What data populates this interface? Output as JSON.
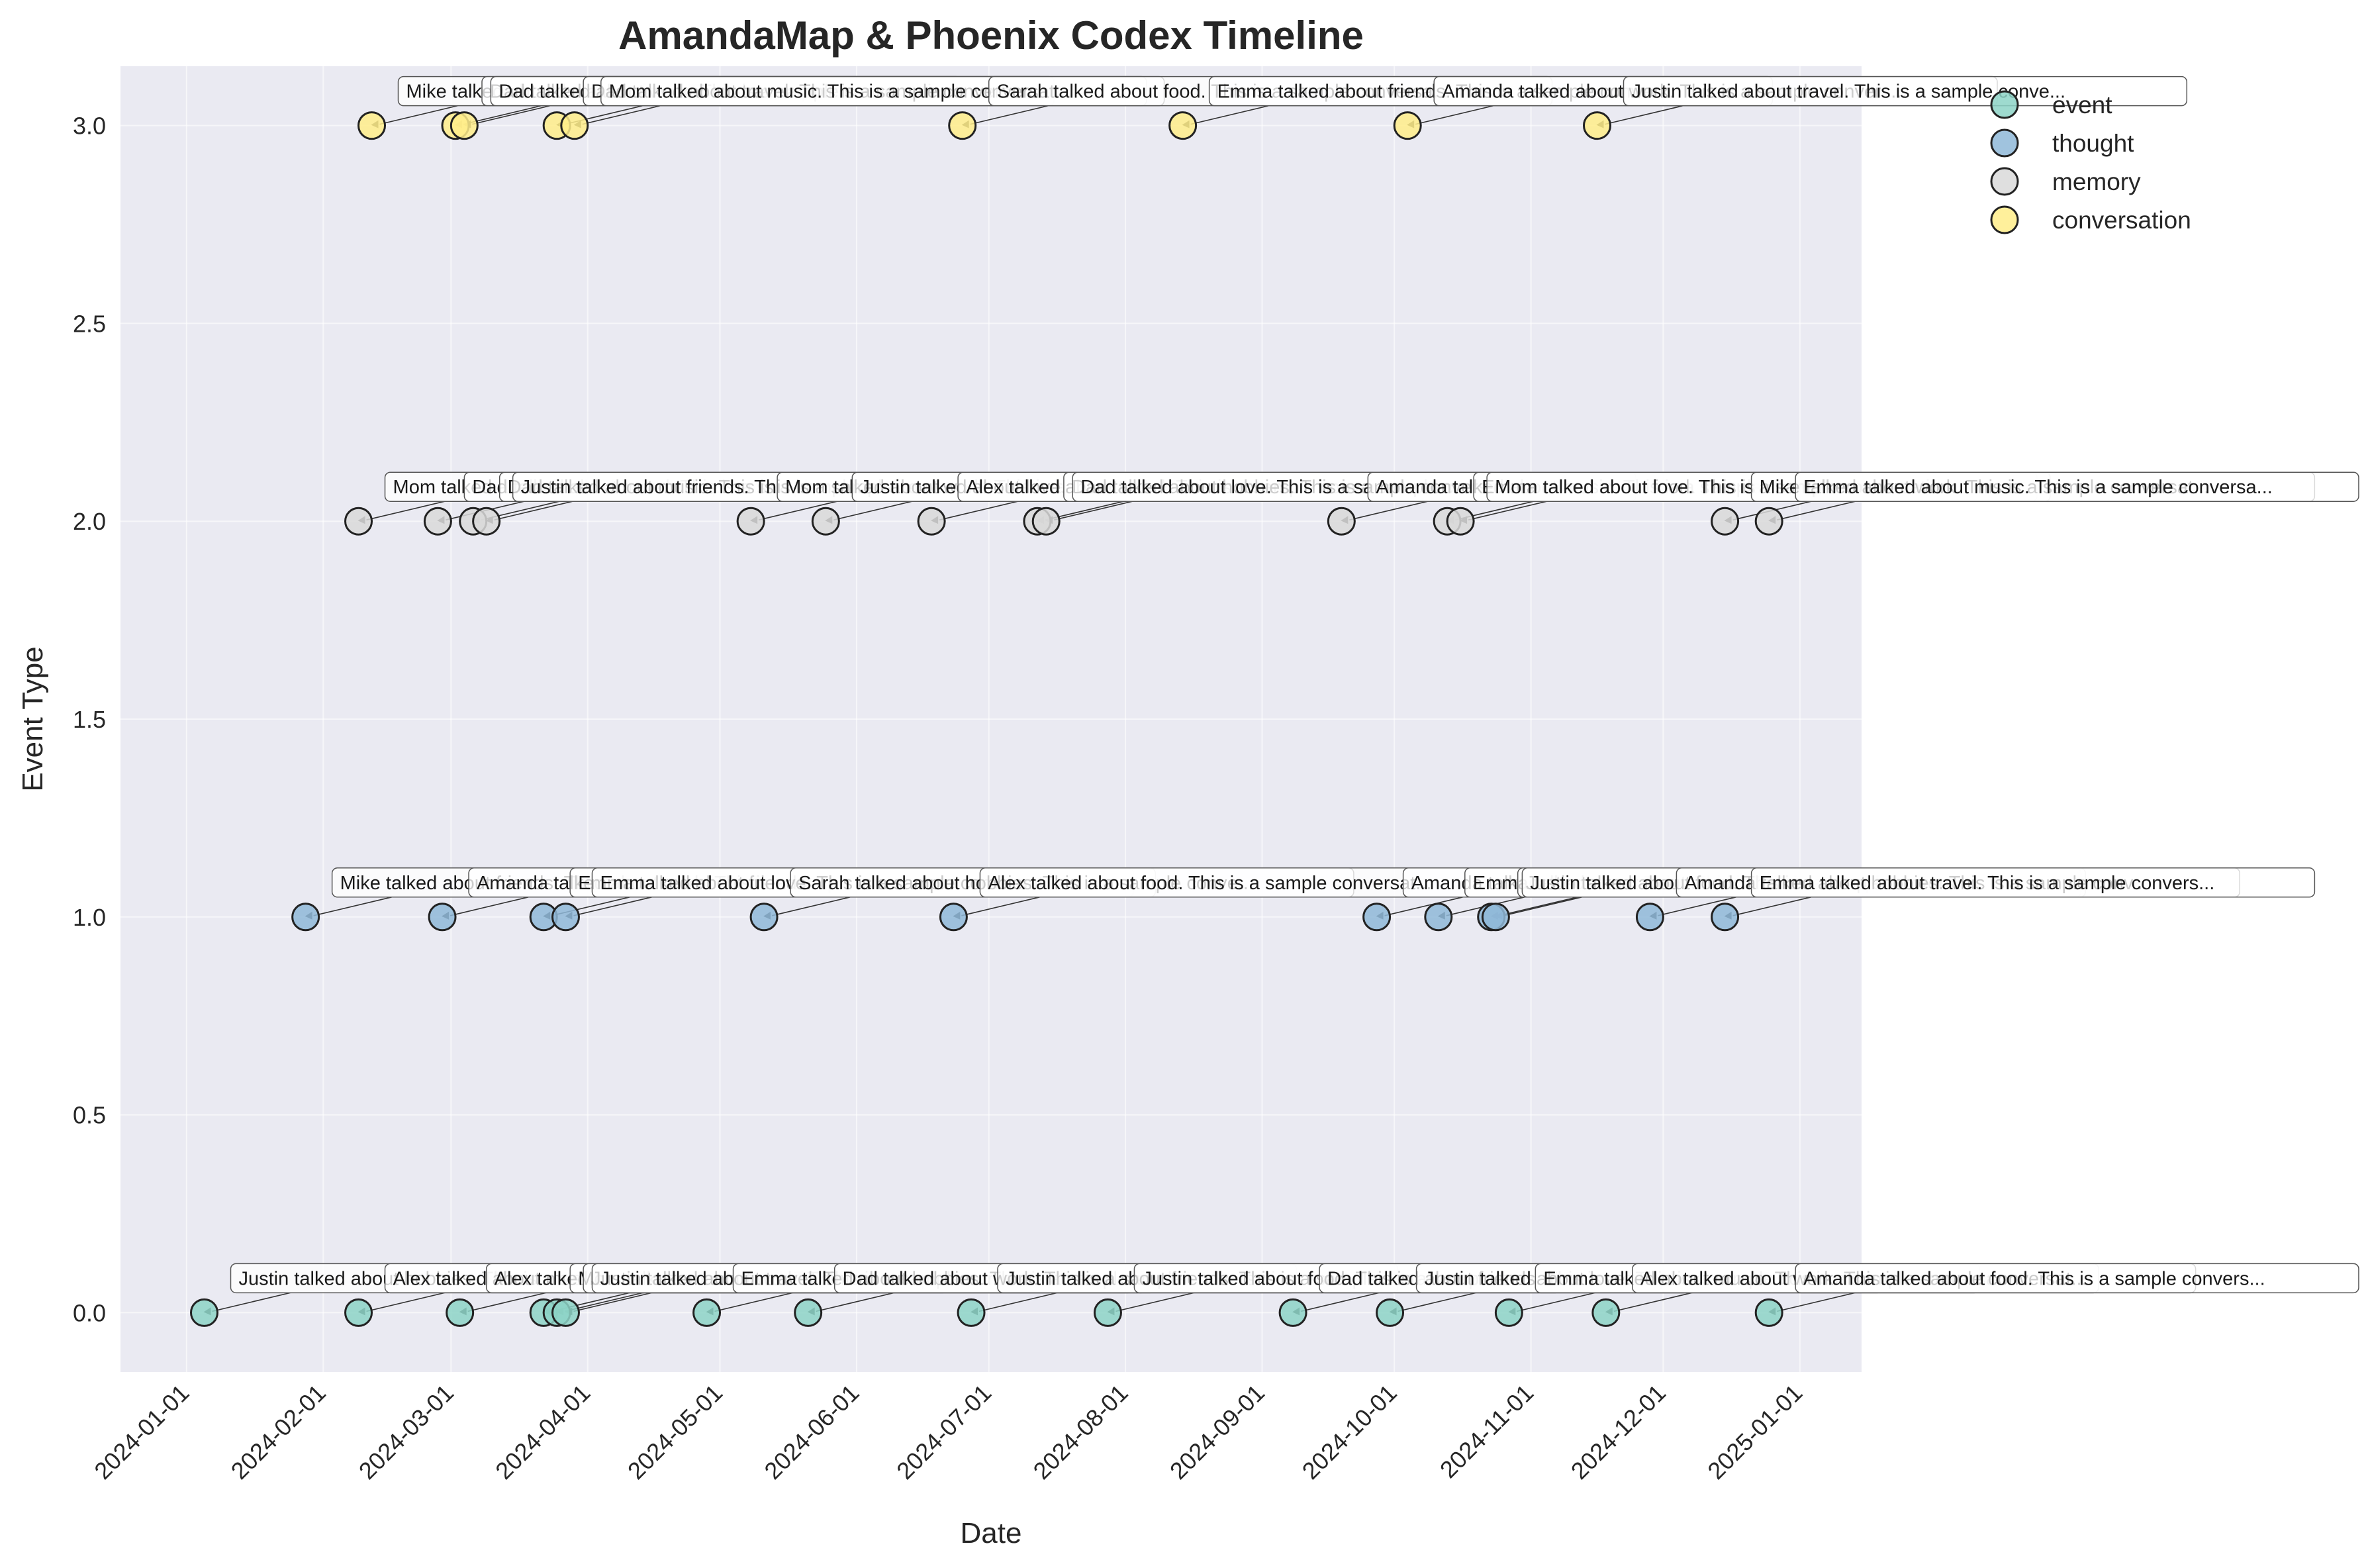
{
  "chart_data": {
    "type": "scatter",
    "title": "AmandaMap & Phoenix Codex Timeline",
    "xlabel": "Date",
    "ylabel": "Event Type",
    "xlim": [
      "2023-12-17",
      "2025-01-15"
    ],
    "ylim": [
      -0.15,
      3.15
    ],
    "x_ticks": [
      "2024-01-01",
      "2024-02-01",
      "2024-03-01",
      "2024-04-01",
      "2024-05-01",
      "2024-06-01",
      "2024-07-01",
      "2024-08-01",
      "2024-09-01",
      "2024-10-01",
      "2024-11-01",
      "2024-12-01",
      "2025-01-01"
    ],
    "y_ticks": [
      "0.0",
      "0.5",
      "1.0",
      "1.5",
      "2.0",
      "2.5",
      "3.0"
    ],
    "y_tick_values": [
      0,
      0.5,
      1,
      1.5,
      2,
      2.5,
      3
    ],
    "grid": true,
    "legend_position": "top-right",
    "series": [
      {
        "name": "event",
        "color": "#8dd3c7",
        "points": [
          {
            "x": "2024-01-05",
            "y": 0,
            "label": "Justin talked about hobbies. This is a sample conv..."
          },
          {
            "x": "2024-02-09",
            "y": 0,
            "label": "Alex talked about music. This is a sample conversa..."
          },
          {
            "x": "2024-03-03",
            "y": 0,
            "label": "Alex talked about love. This is a sample conversat..."
          },
          {
            "x": "2024-03-22",
            "y": 0,
            "label": "Mom talked about travel. This is a sample conversa..."
          },
          {
            "x": "2024-03-25",
            "y": 0,
            "label": "Justin talked about work. This is a sample convers..."
          },
          {
            "x": "2024-03-27",
            "y": 0,
            "label": "Justin talked about travel. This is a sample conve..."
          },
          {
            "x": "2024-04-28",
            "y": 0,
            "label": "Emma talked about hobbies. This is a sample conver..."
          },
          {
            "x": "2024-05-21",
            "y": 0,
            "label": "Dad talked about work. This is a sample conversati..."
          },
          {
            "x": "2024-06-27",
            "y": 0,
            "label": "Justin talked about friends. This is a sample conv..."
          },
          {
            "x": "2024-07-28",
            "y": 0,
            "label": "Justin talked about food. This is a sample convers..."
          },
          {
            "x": "2024-09-08",
            "y": 0,
            "label": "Dad talked about friends. This is a sample convers..."
          },
          {
            "x": "2024-09-30",
            "y": 0,
            "label": "Justin talked about love. This is a sample convers..."
          },
          {
            "x": "2024-10-27",
            "y": 0,
            "label": "Emma talked about music. This is a sample conversa..."
          },
          {
            "x": "2024-11-18",
            "y": 0,
            "label": "Alex talked about work. This is a sample conversat..."
          },
          {
            "x": "2024-12-25",
            "y": 0,
            "label": "Amanda talked about food. This is a sample convers..."
          }
        ]
      },
      {
        "name": "thought",
        "color": "#8fb8d8",
        "points": [
          {
            "x": "2024-01-28",
            "y": 1,
            "label": "Mike talked about friends. This is a sample conver..."
          },
          {
            "x": "2024-02-28",
            "y": 1,
            "label": "Amanda talked about work. This is a sample convers..."
          },
          {
            "x": "2024-03-22",
            "y": 1,
            "label": "Emma talked about friends. This is a sample conver..."
          },
          {
            "x": "2024-03-27",
            "y": 1,
            "label": "Emma talked about love. This is a sample conversat..."
          },
          {
            "x": "2024-05-11",
            "y": 1,
            "label": "Sarah talked about hobbies. This is a sample conve..."
          },
          {
            "x": "2024-06-23",
            "y": 1,
            "label": "Alex talked about food. This is a sample conversat..."
          },
          {
            "x": "2024-09-27",
            "y": 1,
            "label": "Amanda talked about love. This is a sample convers..."
          },
          {
            "x": "2024-10-11",
            "y": 1,
            "label": "Emma talked about work. This is a sample conversat..."
          },
          {
            "x": "2024-10-23",
            "y": 1,
            "label": "Justin talked about music. This is a sample conver..."
          },
          {
            "x": "2024-10-24",
            "y": 1,
            "label": "Justin talked about food. This is a sample convers..."
          },
          {
            "x": "2024-11-28",
            "y": 1,
            "label": "Amanda talked about hobbies. This is a sample conv..."
          },
          {
            "x": "2024-12-15",
            "y": 1,
            "label": "Emma talked about travel. This is a sample convers..."
          }
        ]
      },
      {
        "name": "memory",
        "color": "#d9d9d9",
        "points": [
          {
            "x": "2024-02-09",
            "y": 2,
            "label": "Mom talked about food. This is a sample conversati..."
          },
          {
            "x": "2024-02-27",
            "y": 2,
            "label": "Dad talked about travel. This is a sample conversa..."
          },
          {
            "x": "2024-03-06",
            "y": 2,
            "label": "Dad talked about music. This is a sample conversat..."
          },
          {
            "x": "2024-03-09",
            "y": 2,
            "label": "Justin talked about friends. This is a sample conv..."
          },
          {
            "x": "2024-05-08",
            "y": 2,
            "label": "Mom talked about work. This is a sample conversati..."
          },
          {
            "x": "2024-05-25",
            "y": 2,
            "label": "Justin talked about love. This is a sample convers..."
          },
          {
            "x": "2024-06-18",
            "y": 2,
            "label": "Alex talked about travel. This is a sample convers..."
          },
          {
            "x": "2024-07-12",
            "y": 2,
            "label": "Dad talked about hobbies. This is a sample convers..."
          },
          {
            "x": "2024-07-14",
            "y": 2,
            "label": "Dad talked about love. This is a sample conversati..."
          },
          {
            "x": "2024-09-19",
            "y": 2,
            "label": "Amanda talked about music. This is a sample conver..."
          },
          {
            "x": "2024-10-13",
            "y": 2,
            "label": "Emma talked about food. This is a sample conversat..."
          },
          {
            "x": "2024-10-16",
            "y": 2,
            "label": "Mom talked about love. This is a sample conversati..."
          },
          {
            "x": "2024-12-15",
            "y": 2,
            "label": "Mike talked about work. This is a sample conversat..."
          },
          {
            "x": "2024-12-25",
            "y": 2,
            "label": "Emma talked about music. This is a sample conversa..."
          }
        ]
      },
      {
        "name": "conversation",
        "color": "#ffed8a",
        "points": [
          {
            "x": "2024-02-12",
            "y": 3,
            "label": "Mike talked about hobbies. This is a sample conver..."
          },
          {
            "x": "2024-03-02",
            "y": 3,
            "label": "Dad talked about food. This is a sample conversati..."
          },
          {
            "x": "2024-03-04",
            "y": 3,
            "label": "Dad talked about work. This is a sample conversati..."
          },
          {
            "x": "2024-03-25",
            "y": 3,
            "label": "Dad talked about travel. This is a sample conversa..."
          },
          {
            "x": "2024-03-29",
            "y": 3,
            "label": "Mom talked about music. This is a sample conversat..."
          },
          {
            "x": "2024-06-25",
            "y": 3,
            "label": "Sarah talked about food. This is a sample conversa..."
          },
          {
            "x": "2024-08-14",
            "y": 3,
            "label": "Emma talked about friends. This is a sample conver..."
          },
          {
            "x": "2024-10-04",
            "y": 3,
            "label": "Amanda talked about work. This is a sample convers..."
          },
          {
            "x": "2024-11-16",
            "y": 3,
            "label": "Justin talked about travel. This is a sample conve..."
          }
        ]
      }
    ]
  }
}
